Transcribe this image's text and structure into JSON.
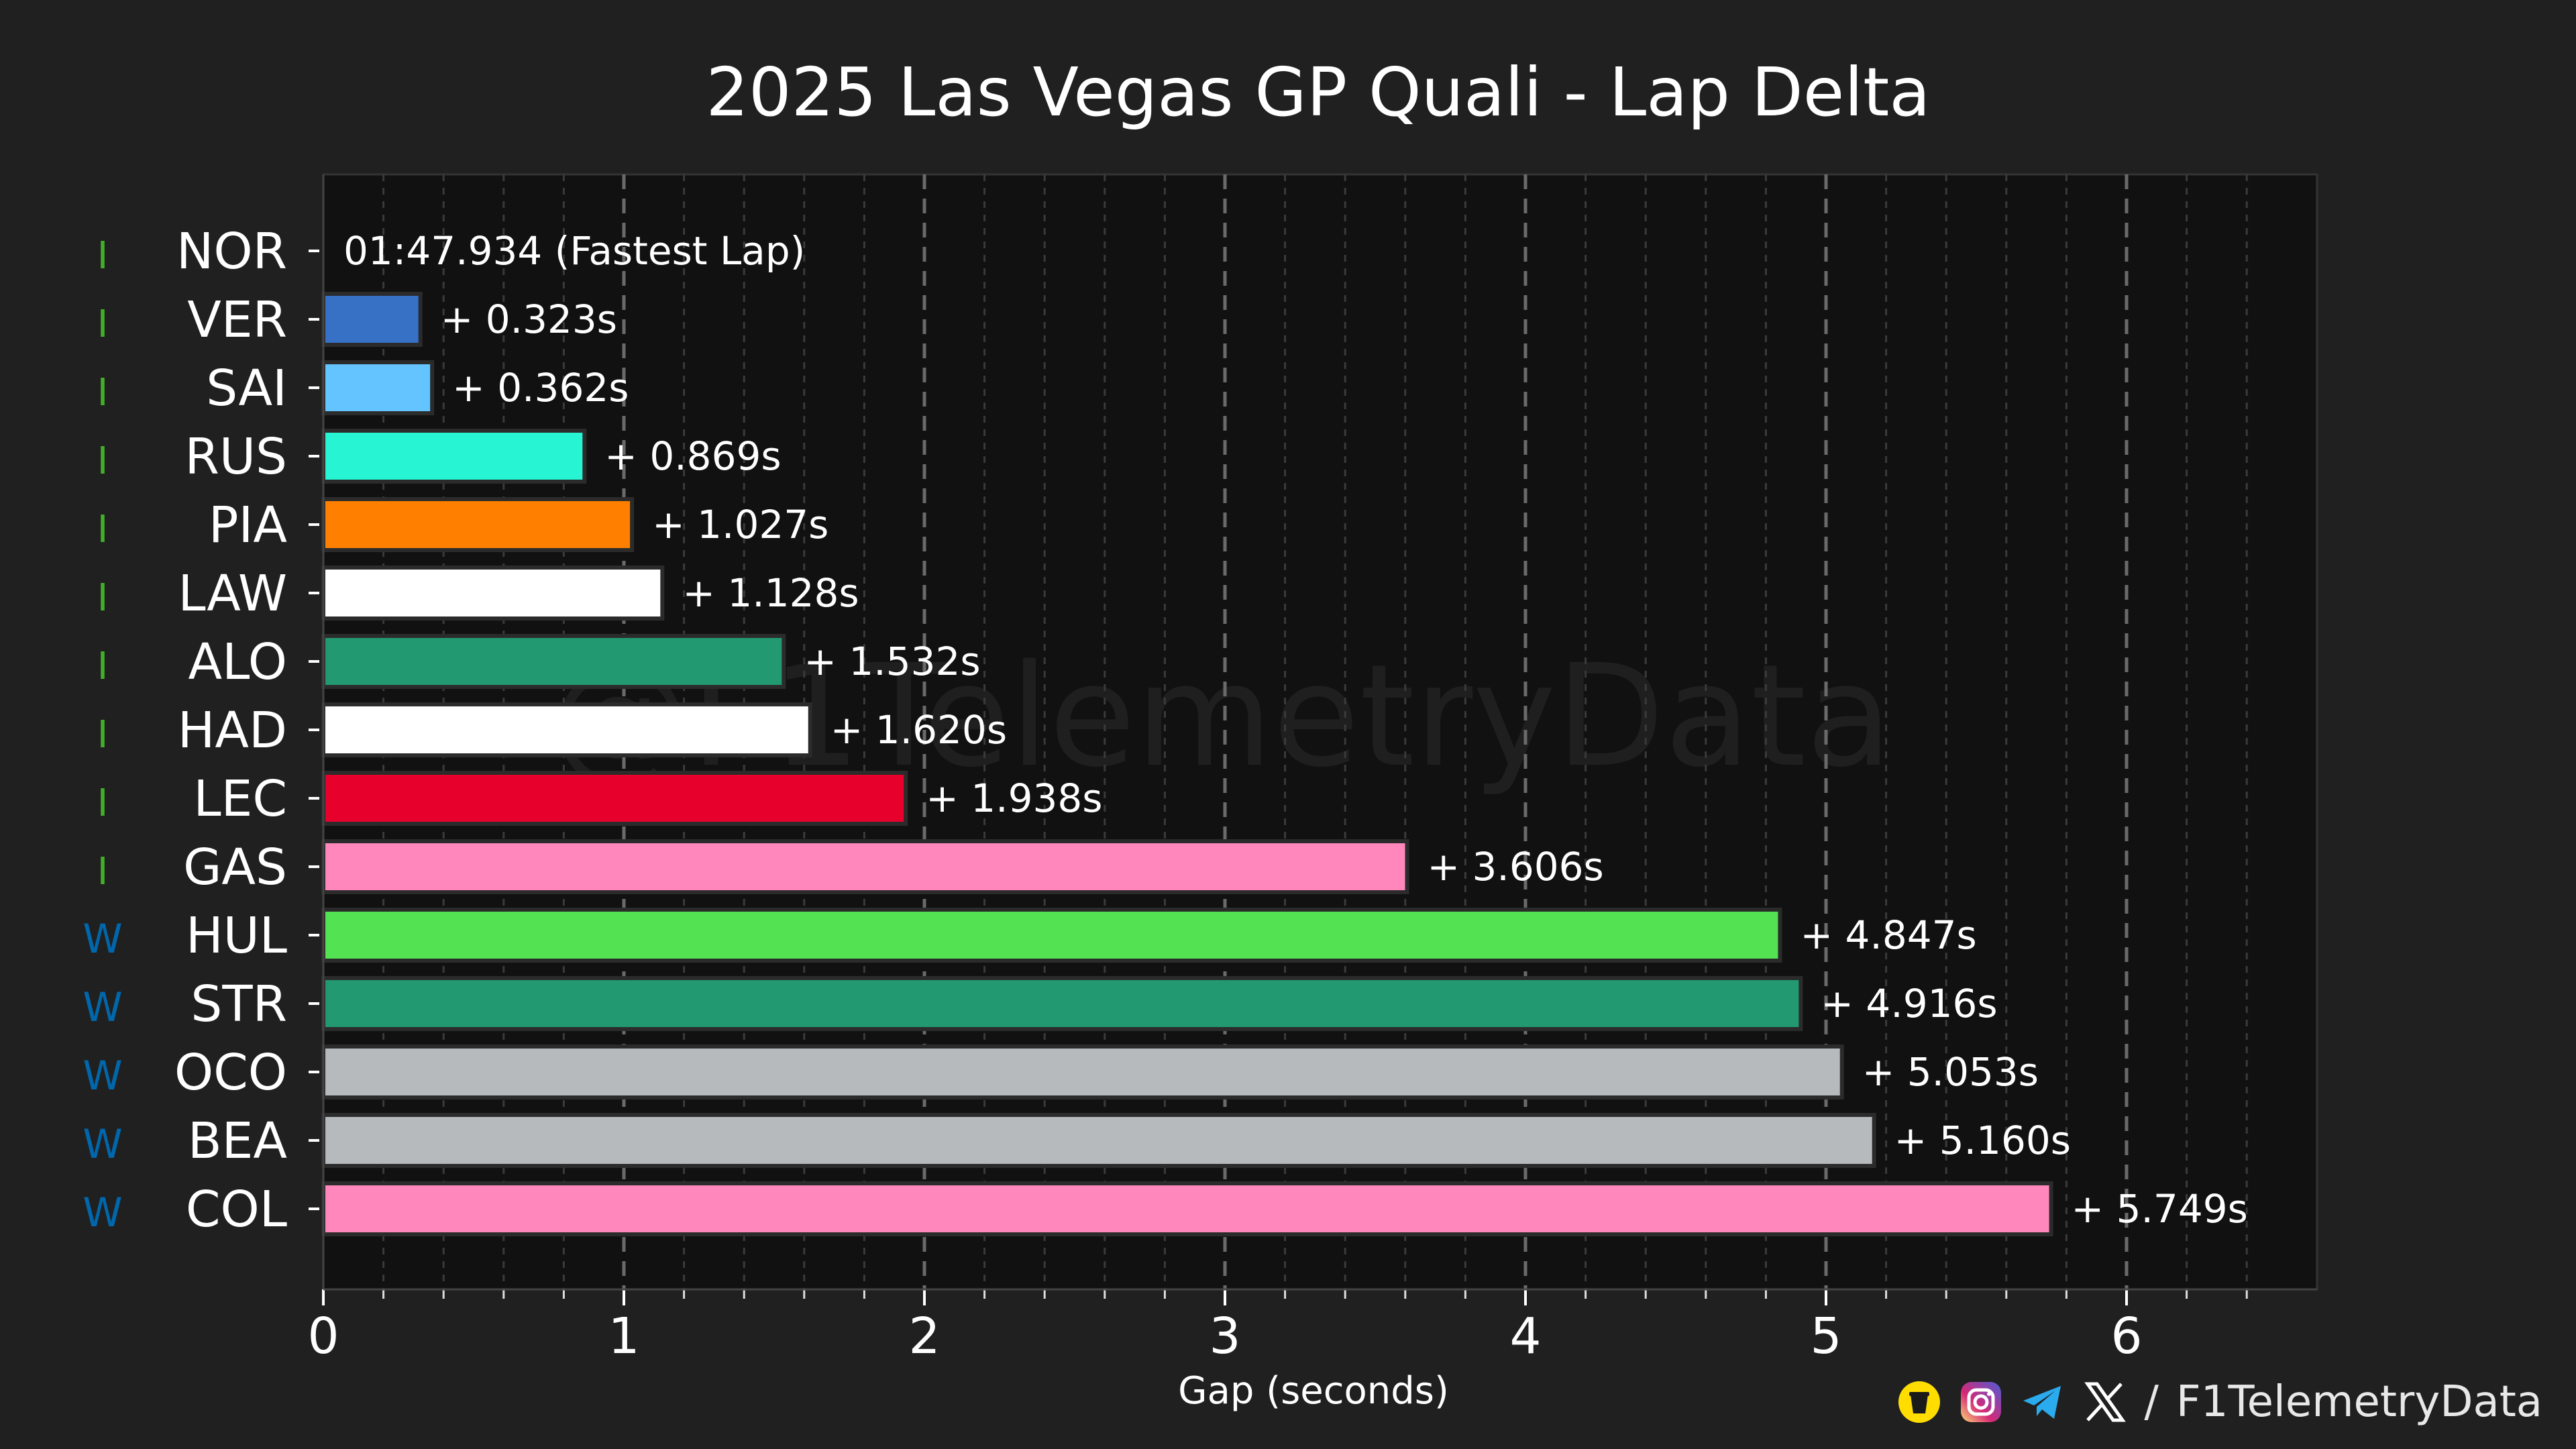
{
  "chart_data": {
    "type": "bar",
    "orientation": "horizontal",
    "title": "2025 Las Vegas GP Quali - Lap Delta",
    "xlabel": "Gap (seconds)",
    "ylabel": "",
    "xlim": [
      0,
      6.6
    ],
    "xticks": [
      "0",
      "1",
      "2",
      "3",
      "4",
      "5",
      "6"
    ],
    "grid": "vertical dashed",
    "watermark": "@F1TelemetryData",
    "fastest_label": "01:47.934 (Fastest Lap)",
    "categories": [
      "NOR",
      "VER",
      "SAI",
      "RUS",
      "PIA",
      "LAW",
      "ALO",
      "HAD",
      "LEC",
      "GAS",
      "HUL",
      "STR",
      "OCO",
      "BEA",
      "COL"
    ],
    "values": [
      0,
      0.323,
      0.362,
      0.869,
      1.027,
      1.128,
      1.532,
      1.62,
      1.938,
      3.606,
      4.847,
      4.916,
      5.053,
      5.16,
      5.749
    ],
    "labels": [
      "",
      "+ 0.323s",
      "+ 0.362s",
      "+ 0.869s",
      "+ 1.027s",
      "+ 1.128s",
      "+ 1.532s",
      "+ 1.620s",
      "+ 1.938s",
      "+ 3.606s",
      "+ 4.847s",
      "+ 4.916s",
      "+ 5.053s",
      "+ 5.160s",
      "+ 5.749s"
    ],
    "colors": [
      "#FF8000",
      "#3671C6",
      "#64C4FF",
      "#27F4D2",
      "#FF8000",
      "#FFFFFF",
      "#229971",
      "#FFFFFF",
      "#E8002D",
      "#FF87BC",
      "#52E252",
      "#229971",
      "#B6BABD",
      "#B6BABD",
      "#FF87BC"
    ],
    "tyres": [
      "I",
      "I",
      "I",
      "I",
      "I",
      "I",
      "I",
      "I",
      "I",
      "I",
      "W",
      "W",
      "W",
      "W",
      "W"
    ],
    "tyre_colors": {
      "I": "#43B02A",
      "W": "#0067AD"
    }
  },
  "footer": {
    "separator": "/",
    "handle": "F1TelemetryData",
    "icons": [
      "buymeacoffee-icon",
      "instagram-icon",
      "telegram-icon",
      "x-icon"
    ]
  }
}
